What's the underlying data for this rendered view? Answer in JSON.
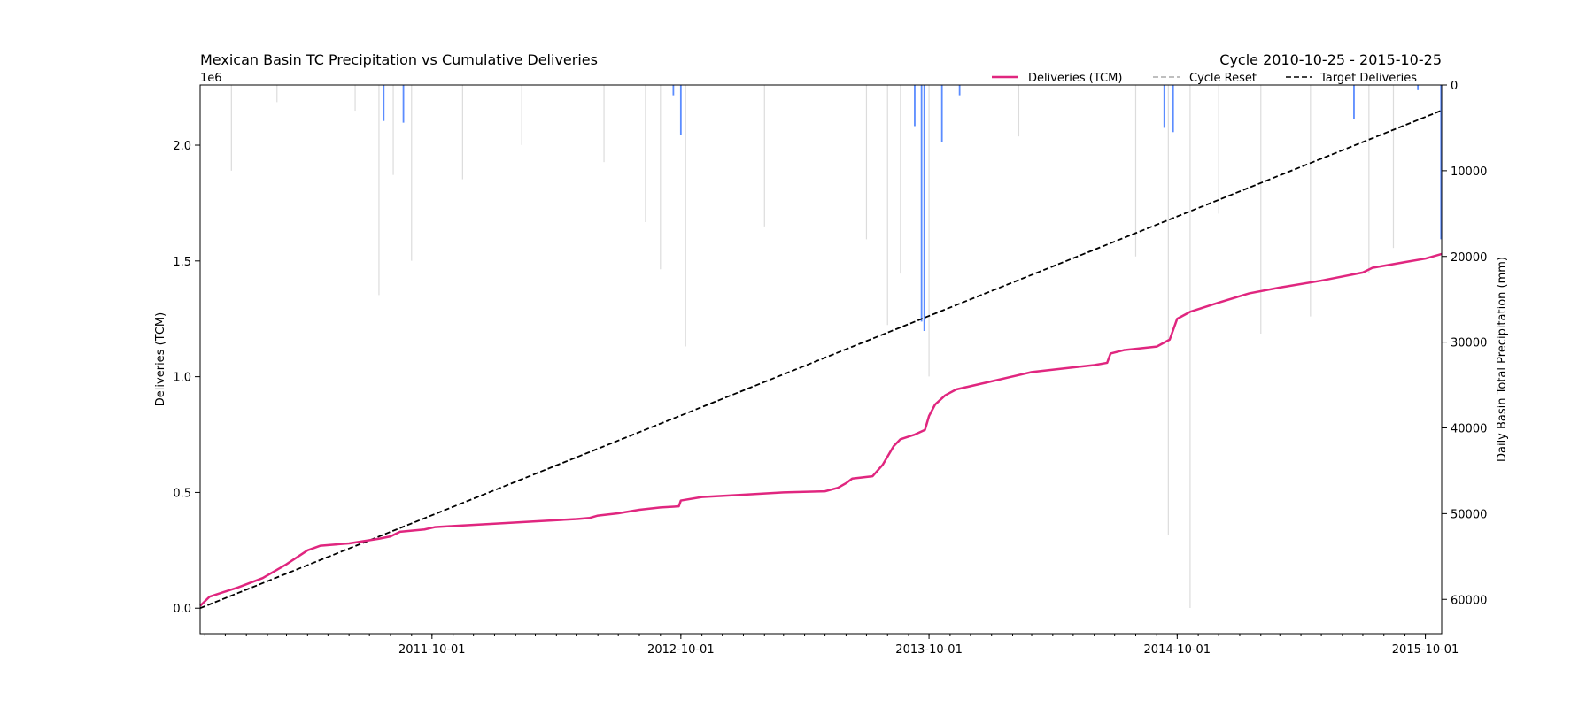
{
  "chart_data": {
    "type": "line",
    "title": "Mexican Basin TC Precipitation vs Cumulative Deliveries",
    "subtitle": "Cycle 2010-10-25 - 2015-10-25",
    "x_range": [
      "2010-10-25",
      "2015-10-25"
    ],
    "x_ticks": [
      "2011-10-01",
      "2012-10-01",
      "2013-10-01",
      "2014-10-01",
      "2015-10-01"
    ],
    "ylabel_left": "Deliveries (TCM)",
    "y_left_multiplier": "1e6",
    "y_left_range": [
      -0.11,
      2.26
    ],
    "y_left_ticks": [
      "0.0",
      "0.5",
      "1.0",
      "1.5",
      "2.0"
    ],
    "y_left_tick_values": [
      0,
      0.5,
      1.0,
      1.5,
      2.0
    ],
    "ylabel_right": "Daily Basin Total Precipitation (mm)",
    "y_right_range": [
      0,
      64000
    ],
    "y_right_inverted": true,
    "y_right_ticks": [
      "0",
      "10000",
      "20000",
      "30000",
      "40000",
      "50000",
      "60000"
    ],
    "y_right_tick_values": [
      0,
      10000,
      20000,
      30000,
      40000,
      50000,
      60000
    ],
    "legend_position": "top-right",
    "legend": [
      {
        "label": "Deliveries (TCM)",
        "color": "#e0267f",
        "style": "solid"
      },
      {
        "label": "Cycle Reset",
        "color": "#aaaaaa",
        "style": "dashed"
      },
      {
        "label": "Target Deliveries",
        "color": "#000000",
        "style": "dashed"
      }
    ],
    "series": [
      {
        "name": "Deliveries (TCM)",
        "color": "#e0267f",
        "axis": "left",
        "points": [
          [
            "2010-10-25",
            0.01
          ],
          [
            "2010-11-08",
            0.05
          ],
          [
            "2010-12-20",
            0.09
          ],
          [
            "2011-01-25",
            0.13
          ],
          [
            "2011-03-01",
            0.19
          ],
          [
            "2011-04-01",
            0.25
          ],
          [
            "2011-04-20",
            0.27
          ],
          [
            "2011-06-01",
            0.28
          ],
          [
            "2011-07-15",
            0.3
          ],
          [
            "2011-08-01",
            0.31
          ],
          [
            "2011-08-15",
            0.33
          ],
          [
            "2011-09-20",
            0.34
          ],
          [
            "2011-10-05",
            0.35
          ],
          [
            "2011-11-01",
            0.355
          ],
          [
            "2012-01-01",
            0.365
          ],
          [
            "2012-03-01",
            0.375
          ],
          [
            "2012-05-01",
            0.385
          ],
          [
            "2012-05-20",
            0.39
          ],
          [
            "2012-06-01",
            0.4
          ],
          [
            "2012-07-01",
            0.41
          ],
          [
            "2012-08-01",
            0.425
          ],
          [
            "2012-09-01",
            0.435
          ],
          [
            "2012-09-28",
            0.44
          ],
          [
            "2012-10-01",
            0.465
          ],
          [
            "2012-11-01",
            0.48
          ],
          [
            "2013-01-01",
            0.49
          ],
          [
            "2013-03-01",
            0.5
          ],
          [
            "2013-05-01",
            0.505
          ],
          [
            "2013-05-20",
            0.52
          ],
          [
            "2013-06-01",
            0.54
          ],
          [
            "2013-06-10",
            0.56
          ],
          [
            "2013-07-10",
            0.57
          ],
          [
            "2013-07-25",
            0.62
          ],
          [
            "2013-08-10",
            0.7
          ],
          [
            "2013-08-20",
            0.73
          ],
          [
            "2013-09-10",
            0.75
          ],
          [
            "2013-09-25",
            0.77
          ],
          [
            "2013-10-01",
            0.83
          ],
          [
            "2013-10-10",
            0.88
          ],
          [
            "2013-10-25",
            0.92
          ],
          [
            "2013-11-10",
            0.945
          ],
          [
            "2014-01-01",
            0.98
          ],
          [
            "2014-03-01",
            1.02
          ],
          [
            "2014-05-01",
            1.04
          ],
          [
            "2014-06-01",
            1.05
          ],
          [
            "2014-06-20",
            1.06
          ],
          [
            "2014-06-25",
            1.1
          ],
          [
            "2014-07-15",
            1.115
          ],
          [
            "2014-09-01",
            1.13
          ],
          [
            "2014-09-20",
            1.16
          ],
          [
            "2014-10-01",
            1.25
          ],
          [
            "2014-10-20",
            1.28
          ],
          [
            "2014-12-01",
            1.32
          ],
          [
            "2015-01-15",
            1.36
          ],
          [
            "2015-03-01",
            1.385
          ],
          [
            "2015-05-01",
            1.415
          ],
          [
            "2015-07-01",
            1.45
          ],
          [
            "2015-07-15",
            1.47
          ],
          [
            "2015-09-01",
            1.495
          ],
          [
            "2015-10-01",
            1.51
          ],
          [
            "2015-10-25",
            1.53
          ]
        ]
      },
      {
        "name": "Target Deliveries",
        "color": "#000000",
        "axis": "left",
        "points": [
          [
            "2010-10-25",
            0.0
          ],
          [
            "2015-10-25",
            2.15
          ]
        ]
      }
    ],
    "precipitation_bars": {
      "axis": "right",
      "note_colors": {
        "background": "#d8d8d8",
        "tropical_cyclone": "#5b8cff"
      },
      "tropical_cyclone_spikes": [
        [
          "2011-07-22",
          4200
        ],
        [
          "2011-08-20",
          4400
        ],
        [
          "2012-09-20",
          1200
        ],
        [
          "2012-10-01",
          5800
        ],
        [
          "2013-09-10",
          4800
        ],
        [
          "2013-09-20",
          27600
        ],
        [
          "2013-09-24",
          28700
        ],
        [
          "2013-10-20",
          6700
        ],
        [
          "2013-11-15",
          1200
        ],
        [
          "2014-09-12",
          5000
        ],
        [
          "2014-09-25",
          5500
        ],
        [
          "2015-06-18",
          4000
        ],
        [
          "2015-09-20",
          600
        ],
        [
          "2015-10-24",
          18000
        ]
      ],
      "background_spikes": [
        [
          "2010-12-10",
          10000
        ],
        [
          "2011-02-15",
          2000
        ],
        [
          "2011-06-10",
          3000
        ],
        [
          "2011-07-15",
          24500
        ],
        [
          "2011-08-05",
          10500
        ],
        [
          "2011-09-01",
          20500
        ],
        [
          "2011-11-15",
          11000
        ],
        [
          "2012-02-10",
          7000
        ],
        [
          "2012-06-10",
          9000
        ],
        [
          "2012-08-10",
          16000
        ],
        [
          "2012-09-01",
          21500
        ],
        [
          "2012-10-08",
          30500
        ],
        [
          "2013-02-01",
          16500
        ],
        [
          "2013-07-01",
          18000
        ],
        [
          "2013-08-01",
          28000
        ],
        [
          "2013-08-20",
          22000
        ],
        [
          "2013-10-01",
          34000
        ],
        [
          "2014-02-10",
          6000
        ],
        [
          "2014-08-01",
          20000
        ],
        [
          "2014-09-18",
          52500
        ],
        [
          "2014-10-20",
          61000
        ],
        [
          "2014-12-01",
          15000
        ],
        [
          "2015-02-01",
          29000
        ],
        [
          "2015-04-15",
          27000
        ],
        [
          "2015-07-10",
          22000
        ],
        [
          "2015-08-15",
          19000
        ]
      ]
    },
    "cycle_reset_dates": []
  }
}
